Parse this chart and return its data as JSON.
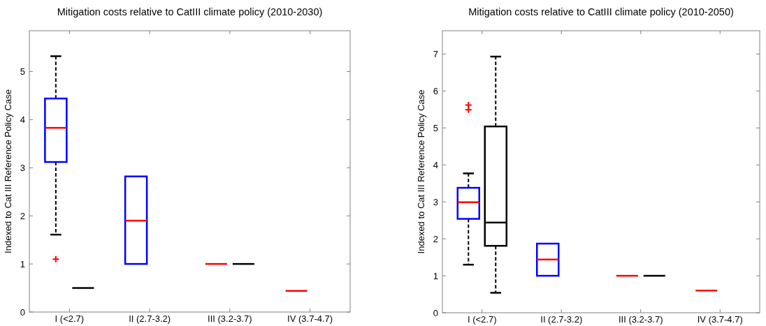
{
  "chart_data": [
    {
      "type": "box",
      "title": "Mitigation costs relative to CatIII climate policy (2010-2030)",
      "ylabel": "Indexed to Cat III Reference Policy Case",
      "categories": [
        "I (<2.7)",
        "II (2.7-3.2)",
        "III (3.2-3.7)",
        "IV (3.7-4.7)"
      ],
      "ylim": [
        0,
        5.85
      ],
      "yticks": [
        0,
        1,
        2,
        3,
        4,
        5
      ],
      "marker": "cross",
      "series": [
        {
          "colors": [
            "#0000ff",
            "#0000ff",
            "#ff0000",
            "#ff0000"
          ],
          "boxes": [
            {
              "low": 1.61,
              "q1": 3.12,
              "median": 3.83,
              "q3": 4.44,
              "high": 5.32,
              "outliers": [
                1.1
              ]
            },
            {
              "low": 1.0,
              "q1": 1.0,
              "median": 1.9,
              "q3": 2.82,
              "high": 2.82
            },
            {
              "low": 1.0,
              "q1": 1.0,
              "median": 1.0,
              "q3": 1.0,
              "high": 1.0
            },
            {
              "low": 0.44,
              "q1": 0.44,
              "median": 0.44,
              "q3": 0.44,
              "high": 0.44
            }
          ]
        },
        {
          "color": "#000000",
          "boxes": [
            {
              "low": 0.5,
              "q1": 0.5,
              "median": 0.5,
              "q3": 0.5,
              "high": 0.5
            },
            null,
            {
              "low": 1.0,
              "q1": 1.0,
              "median": 1.0,
              "q3": 1.0,
              "high": 1.0
            },
            null
          ]
        }
      ]
    },
    {
      "type": "box",
      "title": "Mitigation costs relative to CatIII climate policy (2010-2050)",
      "ylabel": "Indexed to Cat III Reference Policy Case",
      "categories": [
        "I (<2.7)",
        "II (2.7-3.2)",
        "III (3.2-3.7)",
        "IV (3.7-4.7)"
      ],
      "ylim": [
        0,
        7.63
      ],
      "yticks": [
        0,
        1,
        2,
        3,
        4,
        5,
        6,
        7
      ],
      "marker": "cross",
      "series": [
        {
          "colors": [
            "#0000ff",
            "#0000ff",
            "#ff0000",
            "#ff0000"
          ],
          "boxes": [
            {
              "low": 1.3,
              "q1": 2.54,
              "median": 2.99,
              "q3": 3.38,
              "high": 3.77,
              "outliers": [
                5.49,
                5.62
              ]
            },
            {
              "low": 1.0,
              "q1": 1.0,
              "median": 1.44,
              "q3": 1.87,
              "high": 1.87
            },
            {
              "low": 1.0,
              "q1": 1.0,
              "median": 1.0,
              "q3": 1.0,
              "high": 1.0
            },
            {
              "low": 0.6,
              "q1": 0.6,
              "median": 0.6,
              "q3": 0.6,
              "high": 0.6
            }
          ]
        },
        {
          "color": "#000000",
          "boxes": [
            {
              "low": 0.54,
              "q1": 1.81,
              "median": 2.44,
              "q3": 5.04,
              "high": 6.93
            },
            null,
            {
              "low": 1.0,
              "q1": 1.0,
              "median": 1.0,
              "q3": 1.0,
              "high": 1.0
            },
            null
          ]
        }
      ]
    }
  ]
}
